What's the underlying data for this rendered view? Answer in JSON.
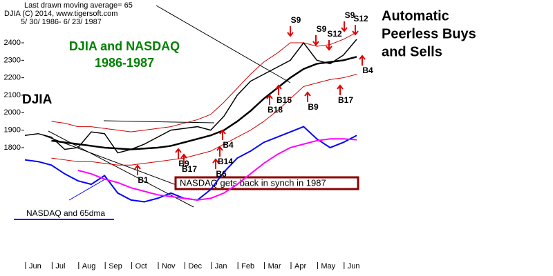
{
  "chart_data": {
    "type": "line",
    "title": "DJIA and NASDAQ",
    "subtitle": "1986-1987",
    "header": [
      "Last drawn moving average= 65",
      "DJIA   (C) 2014, www.tigersoft.com",
      "5/ 30/ 1986- 6/ 23/ 1987"
    ],
    "annotations": [
      "Automatic",
      "Peerless Buys",
      "and Sells",
      "DJIA",
      "NASDAQ gets back in synch in 1987",
      "NASDAQ and 65dma"
    ],
    "signals": [
      "S9",
      "S9",
      "S12",
      "S9",
      "S12",
      "B4",
      "B15",
      "B18",
      "B9",
      "B17",
      "B4",
      "B14",
      "B6",
      "B9",
      "B17",
      "B1"
    ],
    "categories": [
      "Jun",
      null,
      "Jul",
      null,
      "Aug",
      null,
      "Sep",
      null,
      "Oct",
      null,
      "Nov",
      null,
      "Dec",
      null,
      "Jan",
      null,
      "Feb",
      null,
      "Mar",
      null,
      "Apr",
      null,
      "May",
      null,
      "Jun",
      null
    ],
    "ylim": [
      1164,
      2645
    ],
    "yticks": [
      1800,
      1900,
      2000,
      2100,
      2200,
      2300,
      2400
    ],
    "series": [
      {
        "name": "DJIA",
        "color": "#000000",
        "values": [
          1870,
          1880,
          1860,
          1790,
          1800,
          1890,
          1880,
          1770,
          1790,
          1820,
          1860,
          1900,
          1910,
          1920,
          1900,
          1980,
          2100,
          2180,
          2220,
          2260,
          2300,
          2400,
          2300,
          2280,
          2330,
          2420
        ]
      },
      {
        "name": "65-dma",
        "color": "#000000",
        "values": [
          null,
          null,
          1840,
          1830,
          1820,
          1810,
          1800,
          1795,
          1790,
          1795,
          1800,
          1810,
          1830,
          1850,
          1870,
          1900,
          1950,
          2010,
          2080,
          2140,
          2200,
          2250,
          2280,
          2290,
          2300,
          2320
        ]
      },
      {
        "name": "Upper band",
        "color": "#cc0000",
        "values": [
          null,
          null,
          1950,
          1940,
          1920,
          1920,
          1910,
          1900,
          1890,
          1900,
          1910,
          1920,
          1940,
          1960,
          1990,
          2060,
          2140,
          2220,
          2290,
          2340,
          2400,
          2400,
          2380,
          2390,
          2420,
          2460
        ]
      },
      {
        "name": "Lower band",
        "color": "#cc0000",
        "values": [
          null,
          null,
          1740,
          1730,
          1720,
          1720,
          1710,
          1700,
          1700,
          1710,
          1720,
          1730,
          1740,
          1760,
          1780,
          1820,
          1860,
          1900,
          1950,
          2010,
          2080,
          2150,
          2170,
          2190,
          2200,
          2220
        ]
      },
      {
        "name": "NASDAQ",
        "color": "#0000ff",
        "values": [
          1730,
          1720,
          1700,
          1650,
          1610,
          1590,
          1640,
          1540,
          1500,
          1490,
          1510,
          1540,
          1510,
          1500,
          1560,
          1660,
          1740,
          1780,
          1830,
          1860,
          1890,
          1920,
          1850,
          1800,
          1830,
          1870
        ]
      },
      {
        "name": "NASDAQ 65dma",
        "color": "#ff00ff",
        "values": [
          null,
          null,
          null,
          null,
          1670,
          1650,
          1620,
          1600,
          1570,
          1550,
          1530,
          1520,
          1510,
          1500,
          1510,
          1540,
          1590,
          1650,
          1710,
          1760,
          1800,
          1820,
          1840,
          1850,
          1850,
          1845
        ]
      }
    ]
  }
}
